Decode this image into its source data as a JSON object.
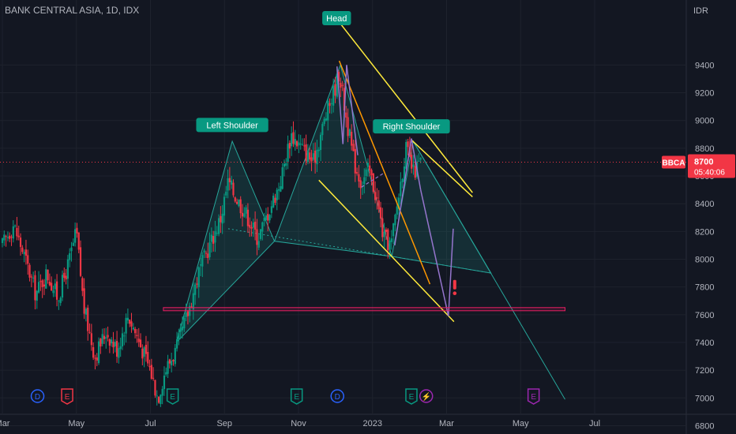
{
  "header": {
    "title": "BANK CENTRAL ASIA, 1D, IDX",
    "currency": "IDR"
  },
  "chart_data": {
    "type": "candlestick",
    "ylim": [
      6760,
      9760
    ],
    "y_ticks": [
      6800,
      7000,
      7200,
      7400,
      7600,
      7800,
      8000,
      8200,
      8400,
      8600,
      8800,
      9000,
      9200,
      9400
    ],
    "x_ticks": [
      {
        "label": "Mar",
        "month_index": 0
      },
      {
        "label": "May",
        "month_index": 2
      },
      {
        "label": "Jul",
        "month_index": 4
      },
      {
        "label": "Sep",
        "month_index": 6
      },
      {
        "label": "Nov",
        "month_index": 8
      },
      {
        "label": "2023",
        "month_index": 10
      },
      {
        "label": "Mar",
        "month_index": 12
      },
      {
        "label": "May",
        "month_index": 14
      },
      {
        "label": "Jul",
        "month_index": 16
      }
    ],
    "price_path": [
      [
        0.0,
        8100
      ],
      [
        0.3,
        8250
      ],
      [
        0.6,
        8020
      ],
      [
        0.9,
        7750
      ],
      [
        1.2,
        7900
      ],
      [
        1.5,
        7720
      ],
      [
        1.8,
        7980
      ],
      [
        2.0,
        8200
      ],
      [
        2.2,
        7650
      ],
      [
        2.5,
        7300
      ],
      [
        2.8,
        7480
      ],
      [
        3.1,
        7350
      ],
      [
        3.4,
        7600
      ],
      [
        3.7,
        7400
      ],
      [
        4.0,
        7200
      ],
      [
        4.2,
        7000
      ],
      [
        4.4,
        7200
      ],
      [
        4.7,
        7350
      ],
      [
        5.0,
        7600
      ],
      [
        5.3,
        7900
      ],
      [
        5.6,
        8100
      ],
      [
        5.9,
        8300
      ],
      [
        6.1,
        8560
      ],
      [
        6.3,
        8450
      ],
      [
        6.6,
        8320
      ],
      [
        6.9,
        8150
      ],
      [
        7.2,
        8350
      ],
      [
        7.5,
        8550
      ],
      [
        7.8,
        8900
      ],
      [
        8.1,
        8800
      ],
      [
        8.4,
        8700
      ],
      [
        8.7,
        9000
      ],
      [
        9.0,
        9250
      ],
      [
        9.1,
        9350
      ],
      [
        9.3,
        9000
      ],
      [
        9.5,
        8700
      ],
      [
        9.7,
        8550
      ],
      [
        9.9,
        8650
      ],
      [
        10.1,
        8450
      ],
      [
        10.3,
        8150
      ],
      [
        10.5,
        8100
      ],
      [
        10.7,
        8450
      ],
      [
        10.9,
        8800
      ],
      [
        11.1,
        8620
      ],
      [
        11.3,
        8700
      ]
    ],
    "support_level": 7640,
    "annotations": [
      {
        "text": "Left Shoulder",
        "x": 6.21,
        "y": 8860
      },
      {
        "text": "Head",
        "x": 9.03,
        "y": 9630
      },
      {
        "text": "Right Shoulder",
        "x": 11.05,
        "y": 8850
      }
    ],
    "current_price": {
      "symbol": "BBCA",
      "price": "8700",
      "countdown": "05:40:06",
      "value": 8700
    },
    "event_markers": [
      {
        "label": "D",
        "type": "dividend",
        "month_index": 0.95,
        "color": "#2962ff"
      },
      {
        "label": "E",
        "type": "earnings",
        "month_index": 1.75,
        "color": "#f23645"
      },
      {
        "label": "E",
        "type": "earnings",
        "month_index": 4.6,
        "color": "#089981"
      },
      {
        "label": "E",
        "type": "earnings",
        "month_index": 7.95,
        "color": "#089981"
      },
      {
        "label": "D",
        "type": "dividend",
        "month_index": 9.05,
        "color": "#2962ff"
      },
      {
        "label": "E",
        "type": "earnings",
        "month_index": 11.05,
        "color": "#089981"
      },
      {
        "label": "⚡",
        "type": "split",
        "month_index": 11.45,
        "color": "#9c27b0"
      },
      {
        "label": "E",
        "type": "earnings",
        "month_index": 14.35,
        "color": "#9c27b0"
      }
    ],
    "alert_icon": "exclamation-icon",
    "colors": {
      "background": "#131722",
      "grid": "#1e222d",
      "up": "#089981",
      "down": "#f23645",
      "pattern_fill": "#26a69a",
      "yellow": "#ffeb3b",
      "orange": "#ff9800",
      "purple": "#9575cd",
      "support": "#e91e63",
      "label_bg": "#089981",
      "axis_text": "#b2b5be",
      "price_tag": "#f23645"
    }
  }
}
